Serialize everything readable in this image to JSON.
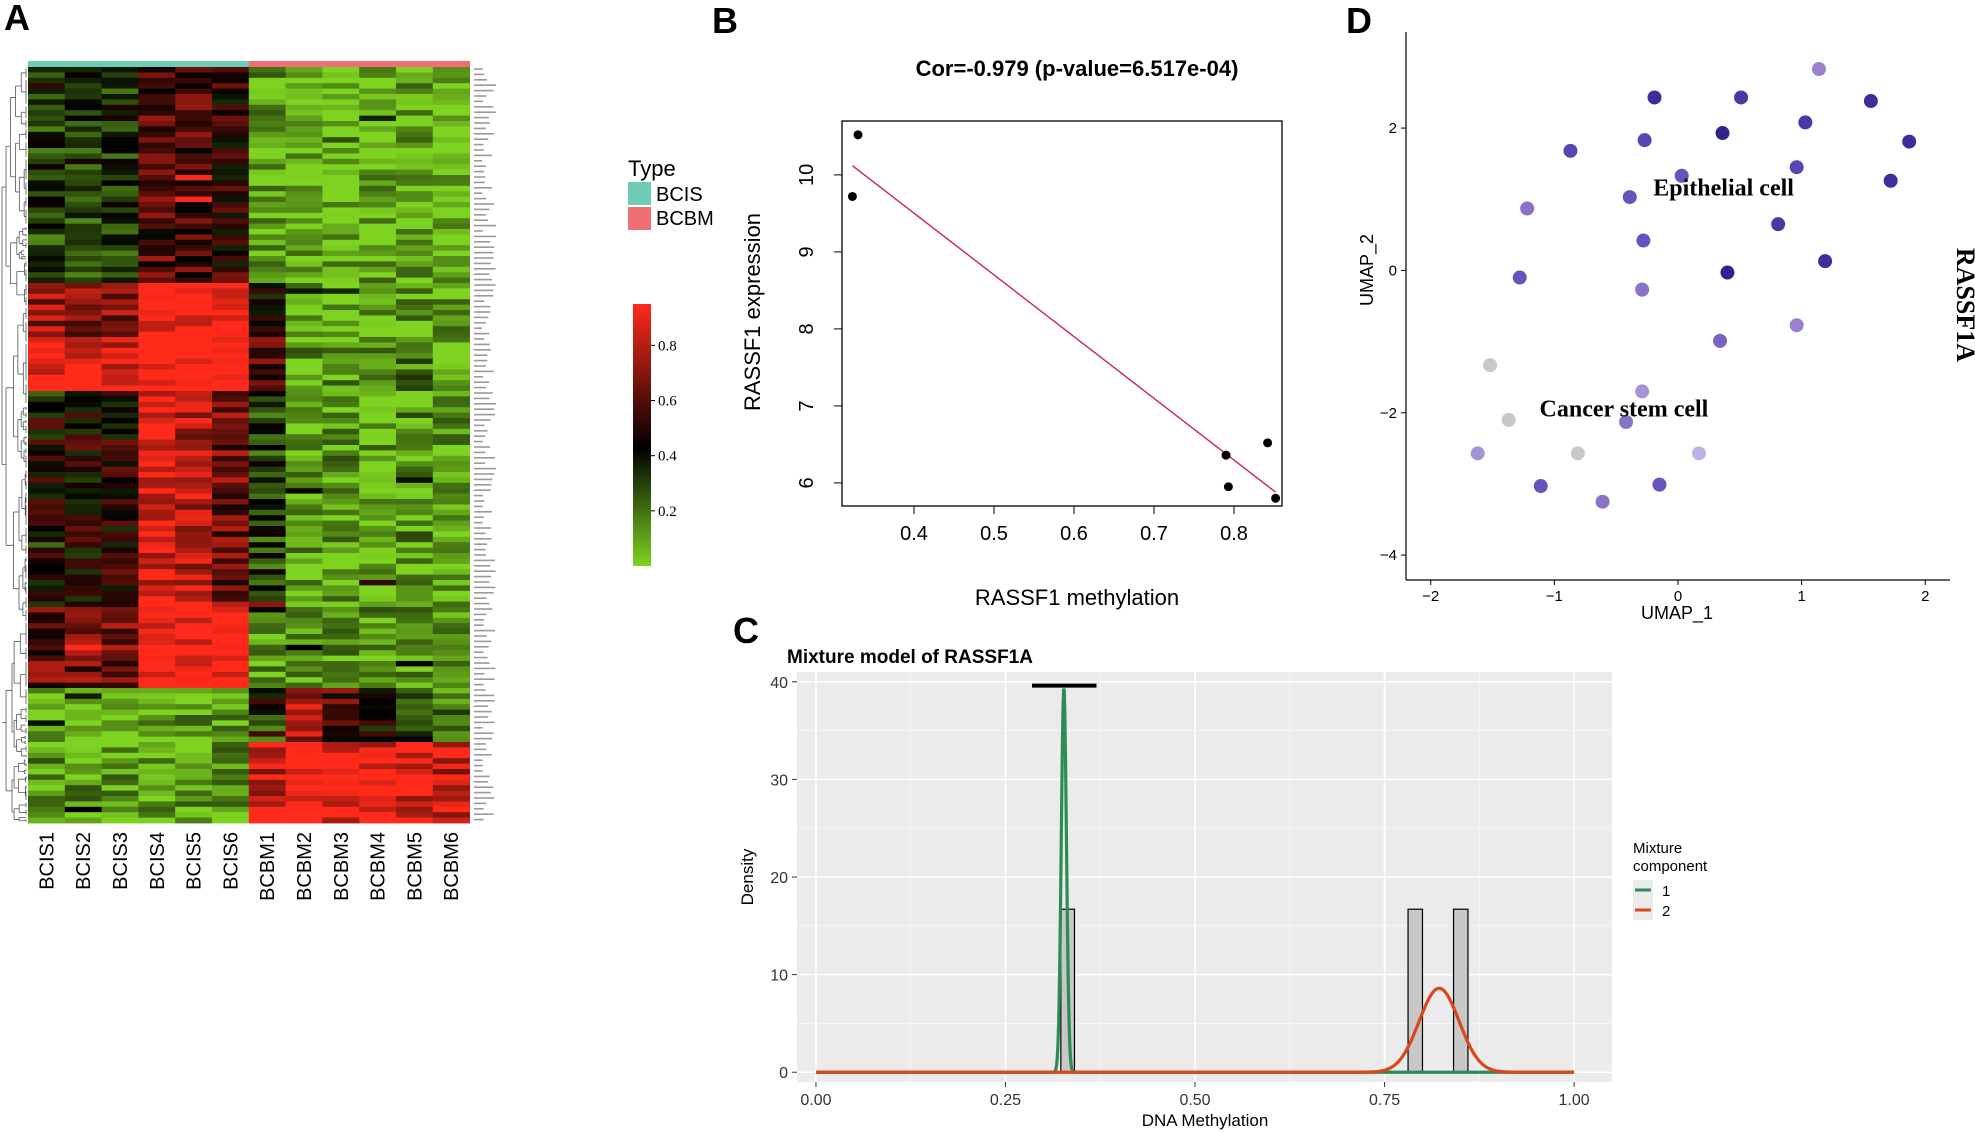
{
  "panels": {
    "A": "A",
    "B": "B",
    "C": "C",
    "D": "D"
  },
  "chart_data": [
    {
      "panel": "A",
      "type": "heatmap",
      "columns": [
        "BCIS1",
        "BCIS2",
        "BCIS3",
        "BCIS4",
        "BCIS5",
        "BCIS6",
        "BCBM1",
        "BCBM2",
        "BCBM3",
        "BCBM4",
        "BCBM5",
        "BCBM6"
      ],
      "column_type": [
        "BCIS",
        "BCIS",
        "BCIS",
        "BCIS",
        "BCIS",
        "BCIS",
        "BCBM",
        "BCBM",
        "BCBM",
        "BCBM",
        "BCBM",
        "BCBM"
      ],
      "n_rows": 140,
      "row_labels_legible": false,
      "legend": {
        "title": "Type",
        "items": [
          {
            "label": "BCIS",
            "color": "#6fcdb7"
          },
          {
            "label": "BCBM",
            "color": "#ef6f74"
          }
        ]
      },
      "colorbar": {
        "ticks": [
          "0.8",
          "0.6",
          "0.4",
          "0.2"
        ],
        "tick_values": [
          0.8,
          0.6,
          0.4,
          0.2
        ],
        "range": [
          0,
          0.95
        ],
        "colors": {
          "low": "#7ed321",
          "mid": "#000000",
          "high": "#ff2a1a"
        }
      },
      "blocks": [
        {
          "rows": [
            0,
            40
          ],
          "values": [
            0.3,
            0.3,
            0.32,
            0.55,
            0.55,
            0.5,
            0.1,
            0.06,
            0.05,
            0.06,
            0.07,
            0.06
          ]
        },
        {
          "rows": [
            40,
            50
          ],
          "values": [
            0.7,
            0.68,
            0.66,
            0.9,
            0.92,
            0.92,
            0.4,
            0.08,
            0.07,
            0.08,
            0.1,
            0.08
          ]
        },
        {
          "rows": [
            50,
            60
          ],
          "values": [
            0.9,
            0.88,
            0.85,
            0.95,
            0.95,
            0.95,
            0.55,
            0.1,
            0.1,
            0.12,
            0.2,
            0.1
          ]
        },
        {
          "rows": [
            60,
            100
          ],
          "values": [
            0.45,
            0.45,
            0.48,
            0.85,
            0.75,
            0.62,
            0.3,
            0.1,
            0.1,
            0.1,
            0.12,
            0.1
          ]
        },
        {
          "rows": [
            100,
            115
          ],
          "values": [
            0.6,
            0.62,
            0.64,
            0.92,
            0.9,
            0.88,
            0.1,
            0.08,
            0.1,
            0.12,
            0.1,
            0.08
          ]
        },
        {
          "rows": [
            115,
            125
          ],
          "values": [
            0.05,
            0.05,
            0.05,
            0.08,
            0.1,
            0.1,
            0.3,
            0.75,
            0.55,
            0.4,
            0.3,
            0.2
          ]
        },
        {
          "rows": [
            125,
            140
          ],
          "values": [
            0.12,
            0.1,
            0.1,
            0.1,
            0.1,
            0.1,
            0.8,
            0.9,
            0.85,
            0.8,
            0.82,
            0.78
          ]
        }
      ]
    },
    {
      "panel": "B",
      "type": "scatter",
      "title": "Cor=-0.979 (p-value=6.517e-04)",
      "xlabel": "RASSF1 methylation",
      "ylabel": "RASSF1 expression",
      "xlim": [
        0.31,
        0.86
      ],
      "ylim": [
        5.7,
        10.7
      ],
      "xticks": [
        0.4,
        0.5,
        0.6,
        0.7,
        0.8
      ],
      "yticks": [
        6,
        7,
        8,
        9,
        10
      ],
      "xtick_labels": [
        "0.4",
        "0.5",
        "0.6",
        "0.7",
        "0.8"
      ],
      "ytick_labels": [
        "6",
        "7",
        "8",
        "9",
        "10"
      ],
      "points": [
        {
          "x": 0.323,
          "y": 9.72
        },
        {
          "x": 0.33,
          "y": 10.52
        },
        {
          "x": 0.79,
          "y": 6.36
        },
        {
          "x": 0.793,
          "y": 5.95
        },
        {
          "x": 0.842,
          "y": 6.52
        },
        {
          "x": 0.852,
          "y": 5.8
        }
      ],
      "fit_line": {
        "x": [
          0.323,
          0.852
        ],
        "y": [
          10.12,
          5.88
        ],
        "color": "#cc2255"
      }
    },
    {
      "panel": "C",
      "type": "area",
      "title": "Mixture model of RASSF1A",
      "xlabel": "DNA Methylation",
      "ylabel": "Density",
      "xlim": [
        -0.025,
        1.05
      ],
      "ylim": [
        -1,
        41
      ],
      "xticks": [
        0.0,
        0.25,
        0.5,
        0.75,
        1.0
      ],
      "yticks": [
        0,
        10,
        20,
        30,
        40
      ],
      "xtick_labels": [
        "0.00",
        "0.25",
        "0.50",
        "0.75",
        "1.00"
      ],
      "ytick_labels": [
        "0",
        "10",
        "20",
        "30",
        "40"
      ],
      "histogram": [
        {
          "x0": 0.323,
          "x1": 0.341,
          "height": 16.7
        },
        {
          "x0": 0.781,
          "x1": 0.8,
          "height": 16.7
        },
        {
          "x0": 0.841,
          "x1": 0.86,
          "height": 16.7
        }
      ],
      "components": [
        {
          "name": "1",
          "color": "#2e8b57",
          "mean": 0.327,
          "sd": 0.0034,
          "weight": 0.333,
          "peak": 39.5
        },
        {
          "name": "2",
          "color": "#d9481c",
          "mean": 0.822,
          "sd": 0.0264,
          "weight": 0.667,
          "peak": 8.6
        }
      ],
      "segment": {
        "x": [
          0.285,
          0.37
        ],
        "y": 39.6
      },
      "legend": {
        "title_line1": "Mixture",
        "title_line2": "component",
        "items": [
          "1",
          "2"
        ]
      },
      "panel_bg": "#ebebeb"
    },
    {
      "panel": "D",
      "type": "scatter",
      "xlabel": "UMAP_1",
      "ylabel": "UMAP_2",
      "side_title": "RASSF1A",
      "xlim": [
        -2.2,
        2.2
      ],
      "ylim": [
        -4.35,
        3.35
      ],
      "xticks": [
        -2,
        -1,
        0,
        1,
        2
      ],
      "yticks": [
        -4,
        -2,
        0,
        2
      ],
      "xtick_labels": [
        "−2",
        "−1",
        "0",
        "1",
        "2"
      ],
      "ytick_labels": [
        "−4",
        "−2",
        "0",
        "2"
      ],
      "annotations": [
        {
          "text": "Epithelial cell",
          "x": -0.2,
          "y": 1.05
        },
        {
          "text": "Cancer stem cell",
          "x": -1.12,
          "y": -2.05
        }
      ],
      "points": [
        {
          "x": 1.14,
          "y": 2.83,
          "c": "#9b80cf"
        },
        {
          "x": -0.19,
          "y": 2.43,
          "c": "#3d2e9c"
        },
        {
          "x": 0.51,
          "y": 2.43,
          "c": "#4a38a6"
        },
        {
          "x": 1.56,
          "y": 2.38,
          "c": "#3d2e9c"
        },
        {
          "x": 1.03,
          "y": 2.08,
          "c": "#4a38a6"
        },
        {
          "x": 0.36,
          "y": 1.93,
          "c": "#2f238c"
        },
        {
          "x": -0.27,
          "y": 1.83,
          "c": "#5a46b0"
        },
        {
          "x": 1.87,
          "y": 1.81,
          "c": "#3d2e9c"
        },
        {
          "x": -0.87,
          "y": 1.68,
          "c": "#5a46b0"
        },
        {
          "x": 0.96,
          "y": 1.45,
          "c": "#5a46b0"
        },
        {
          "x": 0.03,
          "y": 1.33,
          "c": "#6a52bd"
        },
        {
          "x": 1.72,
          "y": 1.26,
          "c": "#3d2e9c"
        },
        {
          "x": -0.39,
          "y": 1.03,
          "c": "#6a52bd"
        },
        {
          "x": -1.22,
          "y": 0.87,
          "c": "#8a72c7"
        },
        {
          "x": 0.81,
          "y": 0.65,
          "c": "#4a38a6"
        },
        {
          "x": -0.28,
          "y": 0.42,
          "c": "#6a52bd"
        },
        {
          "x": 1.19,
          "y": 0.13,
          "c": "#3d2e9c"
        },
        {
          "x": -1.28,
          "y": -0.1,
          "c": "#6a52bd"
        },
        {
          "x": 0.4,
          "y": -0.03,
          "c": "#2f238c"
        },
        {
          "x": -0.29,
          "y": -0.27,
          "c": "#8a72c7"
        },
        {
          "x": 0.96,
          "y": -0.77,
          "c": "#9b80cf"
        },
        {
          "x": 0.34,
          "y": -0.99,
          "c": "#7a62c2"
        },
        {
          "x": -1.52,
          "y": -1.33,
          "c": "#c8c8c8"
        },
        {
          "x": -0.29,
          "y": -1.7,
          "c": "#a792d6"
        },
        {
          "x": -1.37,
          "y": -2.1,
          "c": "#c8c8c8"
        },
        {
          "x": -0.42,
          "y": -2.13,
          "c": "#8a72c7"
        },
        {
          "x": -1.62,
          "y": -2.57,
          "c": "#a792d6"
        },
        {
          "x": -0.81,
          "y": -2.57,
          "c": "#c8c8c8"
        },
        {
          "x": 0.17,
          "y": -2.57,
          "c": "#c0b2e2"
        },
        {
          "x": -1.11,
          "y": -3.03,
          "c": "#6a52bd"
        },
        {
          "x": -0.15,
          "y": -3.01,
          "c": "#6a52bd"
        },
        {
          "x": -0.61,
          "y": -3.25,
          "c": "#8a72c7"
        }
      ]
    }
  ]
}
